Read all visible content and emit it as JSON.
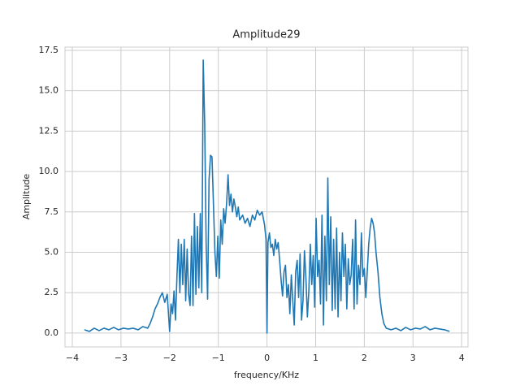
{
  "chart_data": {
    "type": "line",
    "title": "Amplitude29",
    "x_label": "frequency/KHz",
    "y_label": "Amplitude",
    "x": [
      -3.75,
      -3.65,
      -3.55,
      -3.45,
      -3.35,
      -3.25,
      -3.15,
      -3.05,
      -2.95,
      -2.85,
      -2.75,
      -2.65,
      -2.55,
      -2.45,
      -2.4,
      -2.35,
      -2.3,
      -2.25,
      -2.2,
      -2.15,
      -2.1,
      -2.05,
      -2.0,
      -1.97,
      -1.94,
      -1.91,
      -1.88,
      -1.85,
      -1.82,
      -1.79,
      -1.76,
      -1.73,
      -1.7,
      -1.67,
      -1.64,
      -1.61,
      -1.58,
      -1.55,
      -1.52,
      -1.49,
      -1.46,
      -1.43,
      -1.4,
      -1.37,
      -1.34,
      -1.31,
      -1.28,
      -1.25,
      -1.22,
      -1.19,
      -1.16,
      -1.13,
      -1.1,
      -1.07,
      -1.04,
      -1.01,
      -0.98,
      -0.95,
      -0.92,
      -0.89,
      -0.86,
      -0.83,
      -0.8,
      -0.77,
      -0.74,
      -0.71,
      -0.68,
      -0.65,
      -0.62,
      -0.59,
      -0.56,
      -0.5,
      -0.45,
      -0.4,
      -0.35,
      -0.3,
      -0.25,
      -0.2,
      -0.15,
      -0.1,
      -0.05,
      -0.02,
      0,
      0.02,
      0.05,
      0.08,
      0.11,
      0.14,
      0.17,
      0.2,
      0.23,
      0.26,
      0.29,
      0.32,
      0.35,
      0.38,
      0.41,
      0.44,
      0.47,
      0.5,
      0.53,
      0.56,
      0.59,
      0.62,
      0.65,
      0.68,
      0.71,
      0.74,
      0.77,
      0.8,
      0.83,
      0.86,
      0.89,
      0.92,
      0.95,
      0.98,
      1.01,
      1.04,
      1.07,
      1.1,
      1.13,
      1.16,
      1.19,
      1.22,
      1.25,
      1.28,
      1.31,
      1.34,
      1.37,
      1.4,
      1.43,
      1.46,
      1.49,
      1.52,
      1.55,
      1.58,
      1.61,
      1.64,
      1.67,
      1.7,
      1.73,
      1.76,
      1.79,
      1.82,
      1.85,
      1.88,
      1.91,
      1.94,
      1.97,
      2.0,
      2.03,
      2.06,
      2.09,
      2.12,
      2.15,
      2.18,
      2.21,
      2.24,
      2.28,
      2.32,
      2.36,
      2.4,
      2.45,
      2.55,
      2.65,
      2.75,
      2.85,
      2.95,
      3.05,
      3.15,
      3.25,
      3.35,
      3.45,
      3.55,
      3.65,
      3.75
    ],
    "series": [
      {
        "color": "#1f77b4",
        "values": [
          0.2,
          0.1,
          0.3,
          0.15,
          0.3,
          0.2,
          0.35,
          0.2,
          0.3,
          0.25,
          0.3,
          0.2,
          0.4,
          0.3,
          0.6,
          1.0,
          1.5,
          1.8,
          2.2,
          2.5,
          1.9,
          2.4,
          0.1,
          1.8,
          1.2,
          2.6,
          0.8,
          3.5,
          5.8,
          2.5,
          5.5,
          3.0,
          5.8,
          2.0,
          5.2,
          2.4,
          1.7,
          6.0,
          1.7,
          7.4,
          2.4,
          6.6,
          2.8,
          7.4,
          2.5,
          16.9,
          13.0,
          5.5,
          2.1,
          9.5,
          11.0,
          10.9,
          8.0,
          5.0,
          3.5,
          6.0,
          3.4,
          7.0,
          5.5,
          7.7,
          6.8,
          8.0,
          9.8,
          7.9,
          8.6,
          7.5,
          8.3,
          7.8,
          7.2,
          7.8,
          7.0,
          7.3,
          6.8,
          7.1,
          6.6,
          7.3,
          7.0,
          7.6,
          7.3,
          7.5,
          6.7,
          5.8,
          0,
          5.6,
          6.2,
          5.3,
          5.5,
          4.8,
          5.8,
          5.2,
          5.6,
          4.5,
          3.3,
          2.3,
          3.8,
          4.2,
          2.2,
          3.0,
          1.2,
          3.6,
          2.0,
          0.5,
          3.8,
          4.5,
          2.2,
          4.9,
          0.8,
          2.0,
          5.1,
          3.4,
          1.0,
          2.6,
          5.5,
          3.0,
          4.8,
          1.6,
          7.1,
          3.5,
          4.5,
          1.8,
          7.3,
          0.5,
          6.0,
          2.0,
          9.6,
          3.0,
          7.2,
          1.4,
          5.8,
          1.5,
          6.5,
          1.0,
          5.0,
          2.0,
          6.2,
          3.5,
          5.5,
          1.5,
          4.6,
          3.0,
          3.6,
          5.8,
          1.5,
          7.0,
          1.8,
          4.2,
          3.0,
          6.2,
          3.5,
          4.0,
          2.2,
          3.8,
          5.5,
          6.5,
          7.1,
          6.8,
          6.2,
          5.0,
          3.8,
          2.2,
          1.2,
          0.6,
          0.3,
          0.2,
          0.3,
          0.15,
          0.35,
          0.2,
          0.3,
          0.25,
          0.4,
          0.2,
          0.3,
          0.25,
          0.2,
          0.1
        ]
      }
    ],
    "xlim": [
      -4.15,
      4.13
    ],
    "ylim": [
      -0.86,
      17.7
    ],
    "xticks": [
      {
        "value": -4,
        "label": "−4"
      },
      {
        "value": -3,
        "label": "−3"
      },
      {
        "value": -2,
        "label": "−2"
      },
      {
        "value": -1,
        "label": "−1"
      },
      0,
      1,
      2,
      3,
      4
    ],
    "yticks": [
      {
        "value": 0,
        "label": "0.0"
      },
      2.5,
      {
        "value": 5,
        "label": "5.0"
      },
      7.5,
      {
        "value": 10,
        "label": "10.0"
      },
      12.5,
      {
        "value": 15,
        "label": "15.0"
      },
      17.5
    ],
    "grid": true
  }
}
